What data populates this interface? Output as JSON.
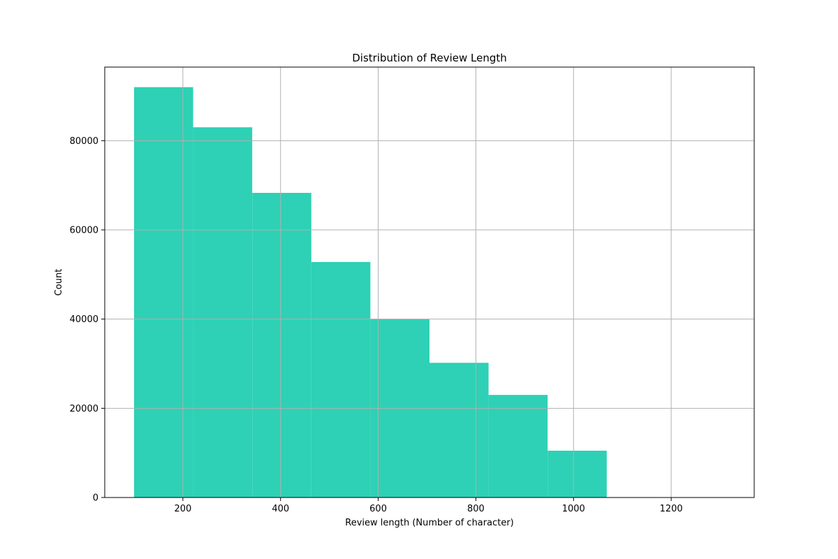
{
  "chart_data": {
    "type": "bar",
    "title": "Distribution of Review Length",
    "xlabel": "Review length (Number of character)",
    "ylabel": "Count",
    "bins": [
      {
        "start": 100,
        "end": 221,
        "count": 92000
      },
      {
        "start": 221,
        "end": 342,
        "count": 83000
      },
      {
        "start": 342,
        "end": 463,
        "count": 68300
      },
      {
        "start": 463,
        "end": 584,
        "count": 52800
      },
      {
        "start": 584,
        "end": 705,
        "count": 40000
      },
      {
        "start": 705,
        "end": 826,
        "count": 30200
      },
      {
        "start": 826,
        "end": 947,
        "count": 23000
      },
      {
        "start": 947,
        "end": 1068,
        "count": 10500
      },
      {
        "start": 1068,
        "end": 1189,
        "count": 0
      },
      {
        "start": 1189,
        "end": 1310,
        "count": 0
      }
    ],
    "xlim": [
      40,
      1370
    ],
    "ylim": [
      0,
      96500
    ],
    "xticks": [
      200,
      400,
      600,
      800,
      1000,
      1200
    ],
    "yticks": [
      0,
      20000,
      40000,
      60000,
      80000
    ],
    "grid": true,
    "bar_color": "#2ed1b5",
    "grid_color": "#b0b0b0",
    "axes_color": "#000000"
  }
}
